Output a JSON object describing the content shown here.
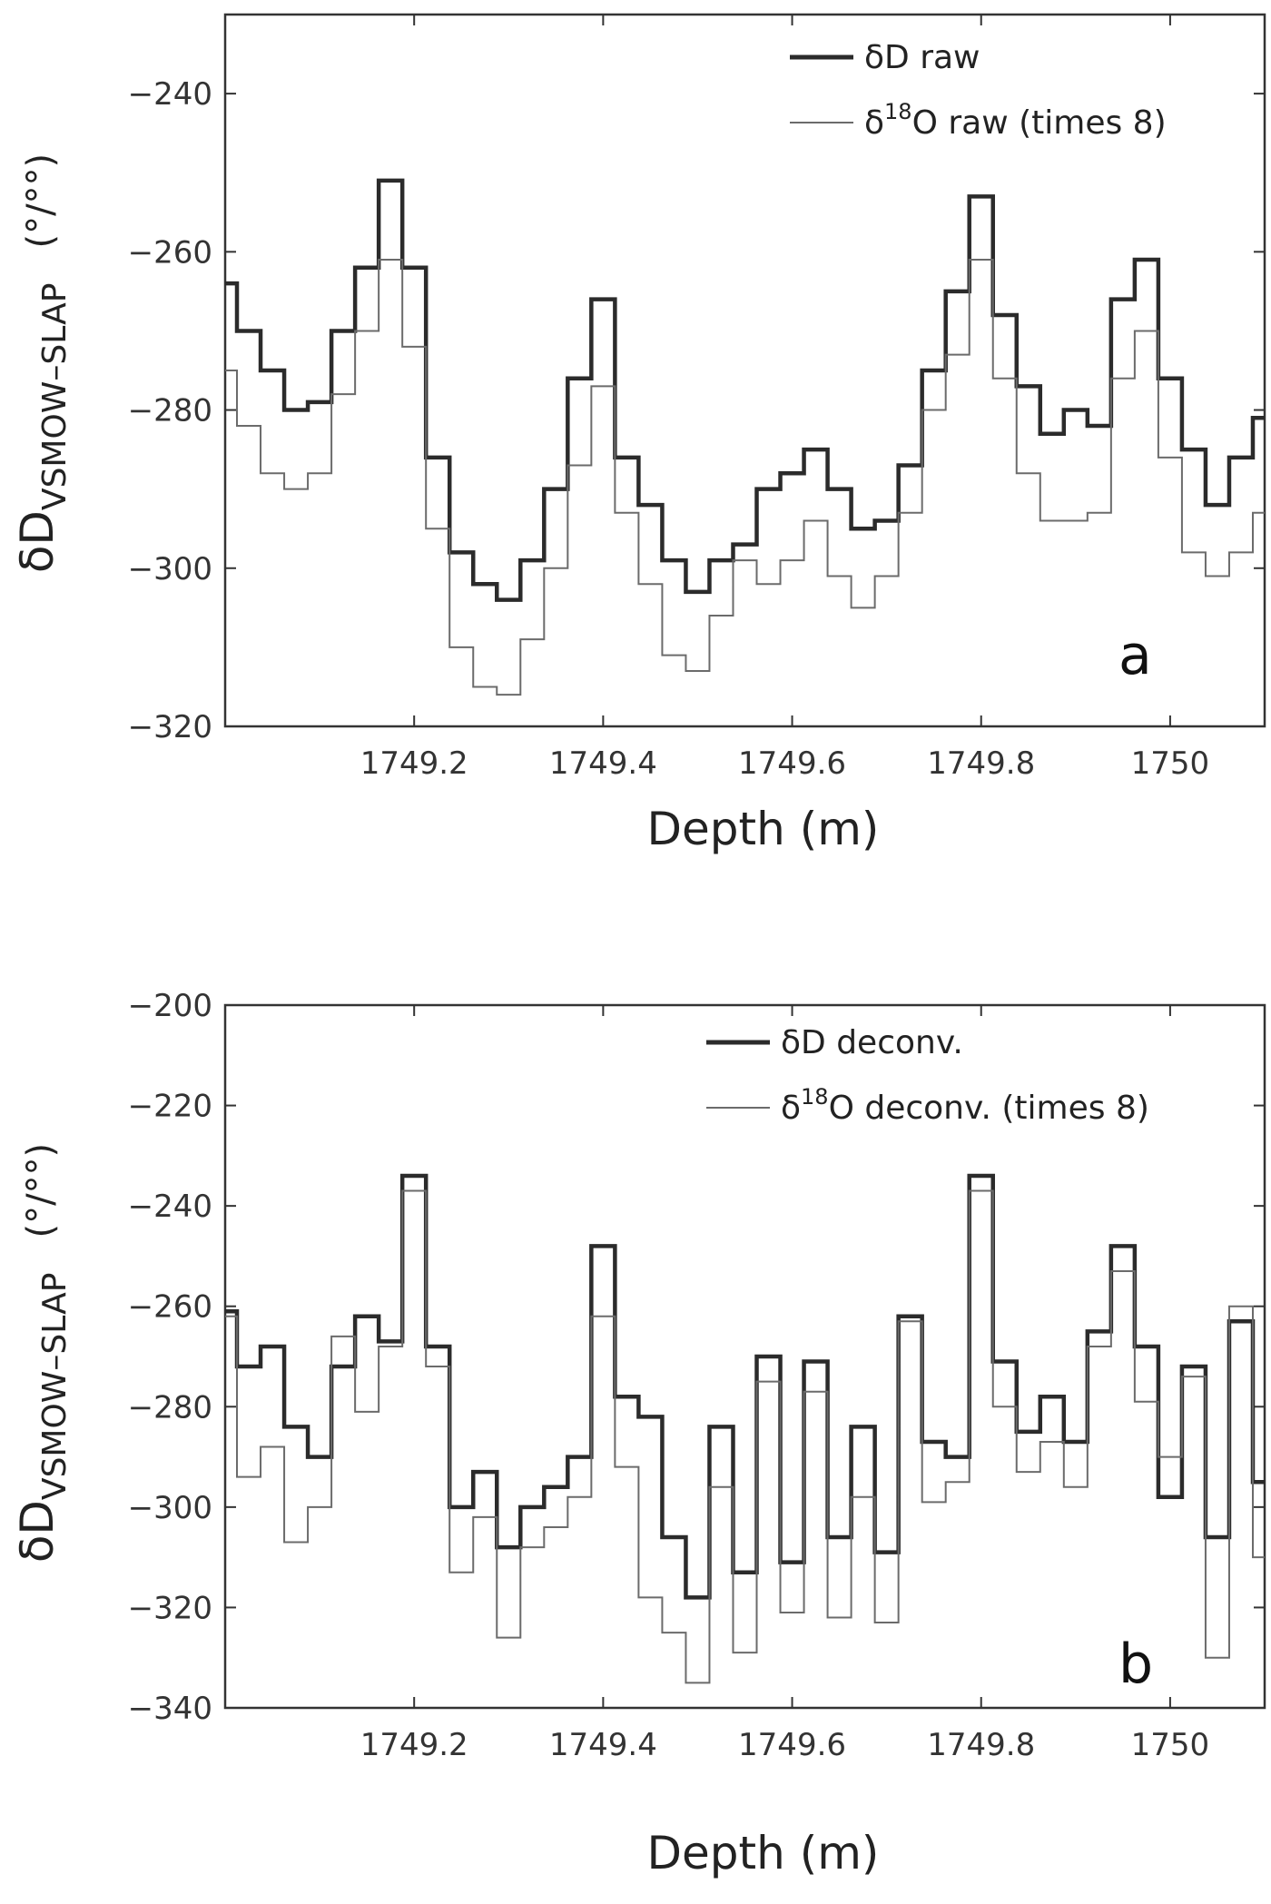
{
  "chart_data": [
    {
      "type": "line",
      "panel_label": "a",
      "xlabel": "Depth (m)",
      "ylabel": "δD",
      "ylabel_sub": "VSMOW–SLAP",
      "ylabel_unit": "(°/°°)",
      "xlim": [
        1749.0,
        1750.1
      ],
      "ylim": [
        -320,
        -230
      ],
      "xticks": [
        1749.2,
        1749.4,
        1749.6,
        1749.8,
        1750.0
      ],
      "xtick_labels": [
        "1749.2",
        "1749.4",
        "1749.6",
        "1749.8",
        "1750"
      ],
      "yticks": [
        -240,
        -260,
        -280,
        -300,
        -320
      ],
      "ytick_labels": [
        "−240",
        "−260",
        "−280",
        "−300",
        "−320"
      ],
      "legend_position": "top-right",
      "grid": false,
      "x": [
        1749.0,
        1749.025,
        1749.05,
        1749.075,
        1749.1,
        1749.125,
        1749.15,
        1749.175,
        1749.2,
        1749.225,
        1749.25,
        1749.275,
        1749.3,
        1749.325,
        1749.35,
        1749.375,
        1749.4,
        1749.425,
        1749.45,
        1749.475,
        1749.5,
        1749.525,
        1749.55,
        1749.575,
        1749.6,
        1749.625,
        1749.65,
        1749.675,
        1749.7,
        1749.725,
        1749.75,
        1749.775,
        1749.8,
        1749.825,
        1749.85,
        1749.875,
        1749.9,
        1749.925,
        1749.95,
        1749.975,
        1750.0,
        1750.025,
        1750.05,
        1750.075,
        1750.1
      ],
      "series": [
        {
          "name": "δD raw",
          "name_prefix": "δD raw",
          "name_sup": "",
          "name_suffix": "",
          "style": "thick",
          "color": "#2b2b2b",
          "values": [
            -264,
            -270,
            -275,
            -280,
            -279,
            -270,
            -262,
            -251,
            -262,
            -286,
            -298,
            -302,
            -304,
            -299,
            -290,
            -276,
            -266,
            -286,
            -292,
            -299,
            -303,
            -299,
            -297,
            -290,
            -288,
            -285,
            -290,
            -295,
            -294,
            -287,
            -275,
            -265,
            -253,
            -268,
            -277,
            -283,
            -280,
            -282,
            -266,
            -261,
            -276,
            -285,
            -292,
            -286,
            -281
          ]
        },
        {
          "name": "δ18O raw (times 8)",
          "name_prefix": "δ",
          "name_sup": "18",
          "name_suffix": "O raw (times 8)",
          "style": "thin",
          "color": "#6b6b6b",
          "values": [
            -275,
            -282,
            -288,
            -290,
            -288,
            -278,
            -270,
            -261,
            -272,
            -295,
            -310,
            -315,
            -316,
            -309,
            -300,
            -287,
            -277,
            -293,
            -302,
            -311,
            -313,
            -306,
            -299,
            -302,
            -299,
            -294,
            -301,
            -305,
            -301,
            -293,
            -280,
            -273,
            -261,
            -276,
            -288,
            -294,
            -294,
            -293,
            -276,
            -270,
            -286,
            -298,
            -301,
            -298,
            -293
          ]
        }
      ]
    },
    {
      "type": "line",
      "panel_label": "b",
      "xlabel": "Depth (m)",
      "ylabel": "δD",
      "ylabel_sub": "VSMOW–SLAP",
      "ylabel_unit": "(°/°°)",
      "xlim": [
        1749.0,
        1750.1
      ],
      "ylim": [
        -340,
        -200
      ],
      "xticks": [
        1749.2,
        1749.4,
        1749.6,
        1749.8,
        1750.0
      ],
      "xtick_labels": [
        "1749.2",
        "1749.4",
        "1749.6",
        "1749.8",
        "1750"
      ],
      "yticks": [
        -200,
        -220,
        -240,
        -260,
        -280,
        -300,
        -320,
        -340
      ],
      "ytick_labels": [
        "−200",
        "−220",
        "−240",
        "−260",
        "−280",
        "−300",
        "−320",
        "−340"
      ],
      "legend_position": "top-right",
      "grid": false,
      "x": [
        1749.0,
        1749.025,
        1749.05,
        1749.075,
        1749.1,
        1749.125,
        1749.15,
        1749.175,
        1749.2,
        1749.225,
        1749.25,
        1749.275,
        1749.3,
        1749.325,
        1749.35,
        1749.375,
        1749.4,
        1749.425,
        1749.45,
        1749.475,
        1749.5,
        1749.525,
        1749.55,
        1749.575,
        1749.6,
        1749.625,
        1749.65,
        1749.675,
        1749.7,
        1749.725,
        1749.75,
        1749.775,
        1749.8,
        1749.825,
        1749.85,
        1749.875,
        1749.9,
        1749.925,
        1749.95,
        1749.975,
        1750.0,
        1750.025,
        1750.05,
        1750.075,
        1750.1
      ],
      "series": [
        {
          "name": "δD deconv.",
          "name_prefix": "δD deconv.",
          "name_sup": "",
          "name_suffix": "",
          "style": "thick",
          "color": "#2b2b2b",
          "values": [
            -261,
            -272,
            -268,
            -284,
            -290,
            -272,
            -262,
            -267,
            -234,
            -268,
            -300,
            -293,
            -308,
            -300,
            -296,
            -290,
            -248,
            -278,
            -282,
            -306,
            -318,
            -284,
            -313,
            -270,
            -311,
            -271,
            -306,
            -284,
            -309,
            -262,
            -287,
            -290,
            -234,
            -271,
            -285,
            -278,
            -287,
            -265,
            -248,
            -268,
            -298,
            -272,
            -306,
            -263,
            -295
          ]
        },
        {
          "name": "δ18O deconv. (times 8)",
          "name_prefix": "δ",
          "name_sup": "18",
          "name_suffix": "O deconv. (times 8)",
          "style": "thin",
          "color": "#6b6b6b",
          "values": [
            -262,
            -294,
            -288,
            -307,
            -300,
            -266,
            -281,
            -268,
            -237,
            -272,
            -313,
            -302,
            -326,
            -308,
            -304,
            -298,
            -262,
            -292,
            -318,
            -325,
            -335,
            -296,
            -329,
            -275,
            -321,
            -277,
            -322,
            -298,
            -323,
            -263,
            -299,
            -295,
            -237,
            -280,
            -293,
            -287,
            -296,
            -268,
            -253,
            -279,
            -290,
            -274,
            -330,
            -260,
            -310
          ]
        }
      ]
    }
  ]
}
